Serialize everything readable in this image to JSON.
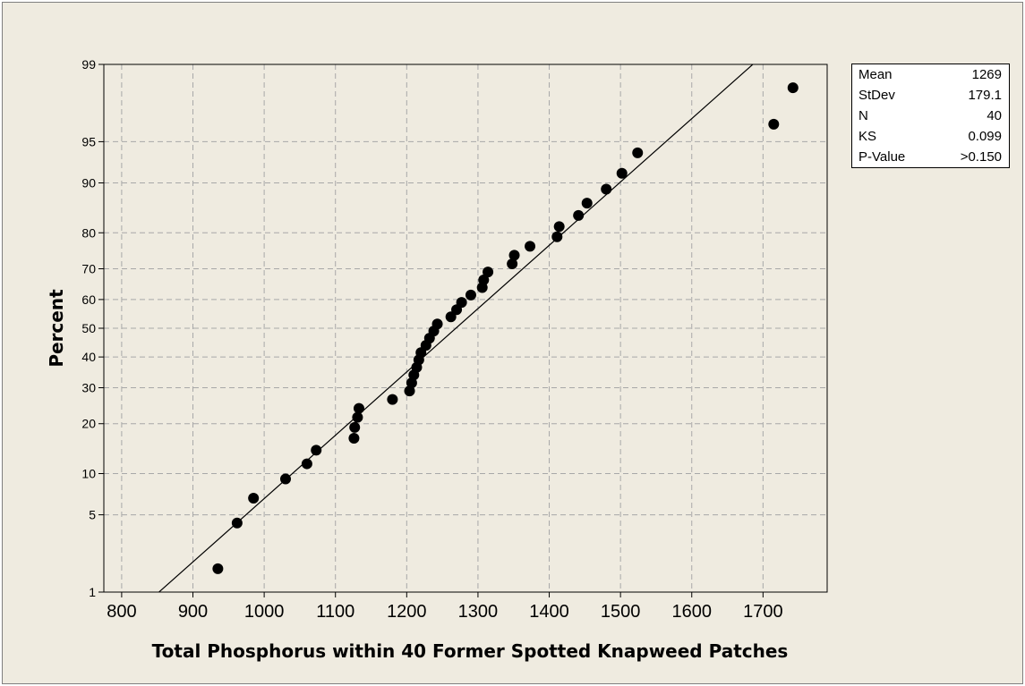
{
  "chart_data": {
    "type": "scatter",
    "title": "",
    "xlabel": "Total Phosphorus within 40 Former Spotted Knapweed Patches",
    "ylabel": "Percent",
    "xlim": [
      775,
      1790
    ],
    "ylim": [
      1,
      99
    ],
    "y_scale": "normal-probability",
    "x_ticks": [
      800,
      900,
      1000,
      1100,
      1200,
      1300,
      1400,
      1500,
      1600,
      1700
    ],
    "y_ticks": [
      1,
      5,
      10,
      20,
      30,
      40,
      50,
      60,
      70,
      80,
      90,
      95,
      99
    ],
    "grid": true,
    "fit_line": {
      "mean": 1269,
      "stdev": 179.1
    },
    "points": [
      {
        "x": 935,
        "y": 1.7
      },
      {
        "x": 962,
        "y": 4.3
      },
      {
        "x": 985,
        "y": 6.7
      },
      {
        "x": 1030,
        "y": 9.2
      },
      {
        "x": 1060,
        "y": 11.6
      },
      {
        "x": 1073,
        "y": 14.1
      },
      {
        "x": 1126,
        "y": 16.6
      },
      {
        "x": 1127,
        "y": 19.1
      },
      {
        "x": 1131,
        "y": 21.6
      },
      {
        "x": 1133,
        "y": 24.0
      },
      {
        "x": 1180,
        "y": 26.5
      },
      {
        "x": 1204,
        "y": 29.0
      },
      {
        "x": 1207,
        "y": 31.5
      },
      {
        "x": 1210,
        "y": 34.0
      },
      {
        "x": 1214,
        "y": 36.5
      },
      {
        "x": 1217,
        "y": 39.0
      },
      {
        "x": 1220,
        "y": 41.5
      },
      {
        "x": 1227,
        "y": 44.0
      },
      {
        "x": 1232,
        "y": 46.5
      },
      {
        "x": 1238,
        "y": 49.0
      },
      {
        "x": 1243,
        "y": 51.5
      },
      {
        "x": 1262,
        "y": 54.0
      },
      {
        "x": 1270,
        "y": 56.5
      },
      {
        "x": 1277,
        "y": 59.0
      },
      {
        "x": 1290,
        "y": 61.5
      },
      {
        "x": 1306,
        "y": 64.0
      },
      {
        "x": 1308,
        "y": 66.5
      },
      {
        "x": 1314,
        "y": 69.0
      },
      {
        "x": 1348,
        "y": 71.5
      },
      {
        "x": 1351,
        "y": 74.0
      },
      {
        "x": 1373,
        "y": 76.5
      },
      {
        "x": 1411,
        "y": 79.0
      },
      {
        "x": 1414,
        "y": 81.5
      },
      {
        "x": 1441,
        "y": 84.0
      },
      {
        "x": 1453,
        "y": 86.5
      },
      {
        "x": 1480,
        "y": 89.0
      },
      {
        "x": 1502,
        "y": 91.4
      },
      {
        "x": 1524,
        "y": 93.9
      },
      {
        "x": 1715,
        "y": 96.4
      },
      {
        "x": 1742,
        "y": 98.3
      }
    ]
  },
  "stats": [
    {
      "label": "Mean",
      "value": "1269"
    },
    {
      "label": "StDev",
      "value": "179.1"
    },
    {
      "label": "N",
      "value": "40"
    },
    {
      "label": "KS",
      "value": "0.099"
    },
    {
      "label": "P-Value",
      "value": ">0.150"
    }
  ]
}
